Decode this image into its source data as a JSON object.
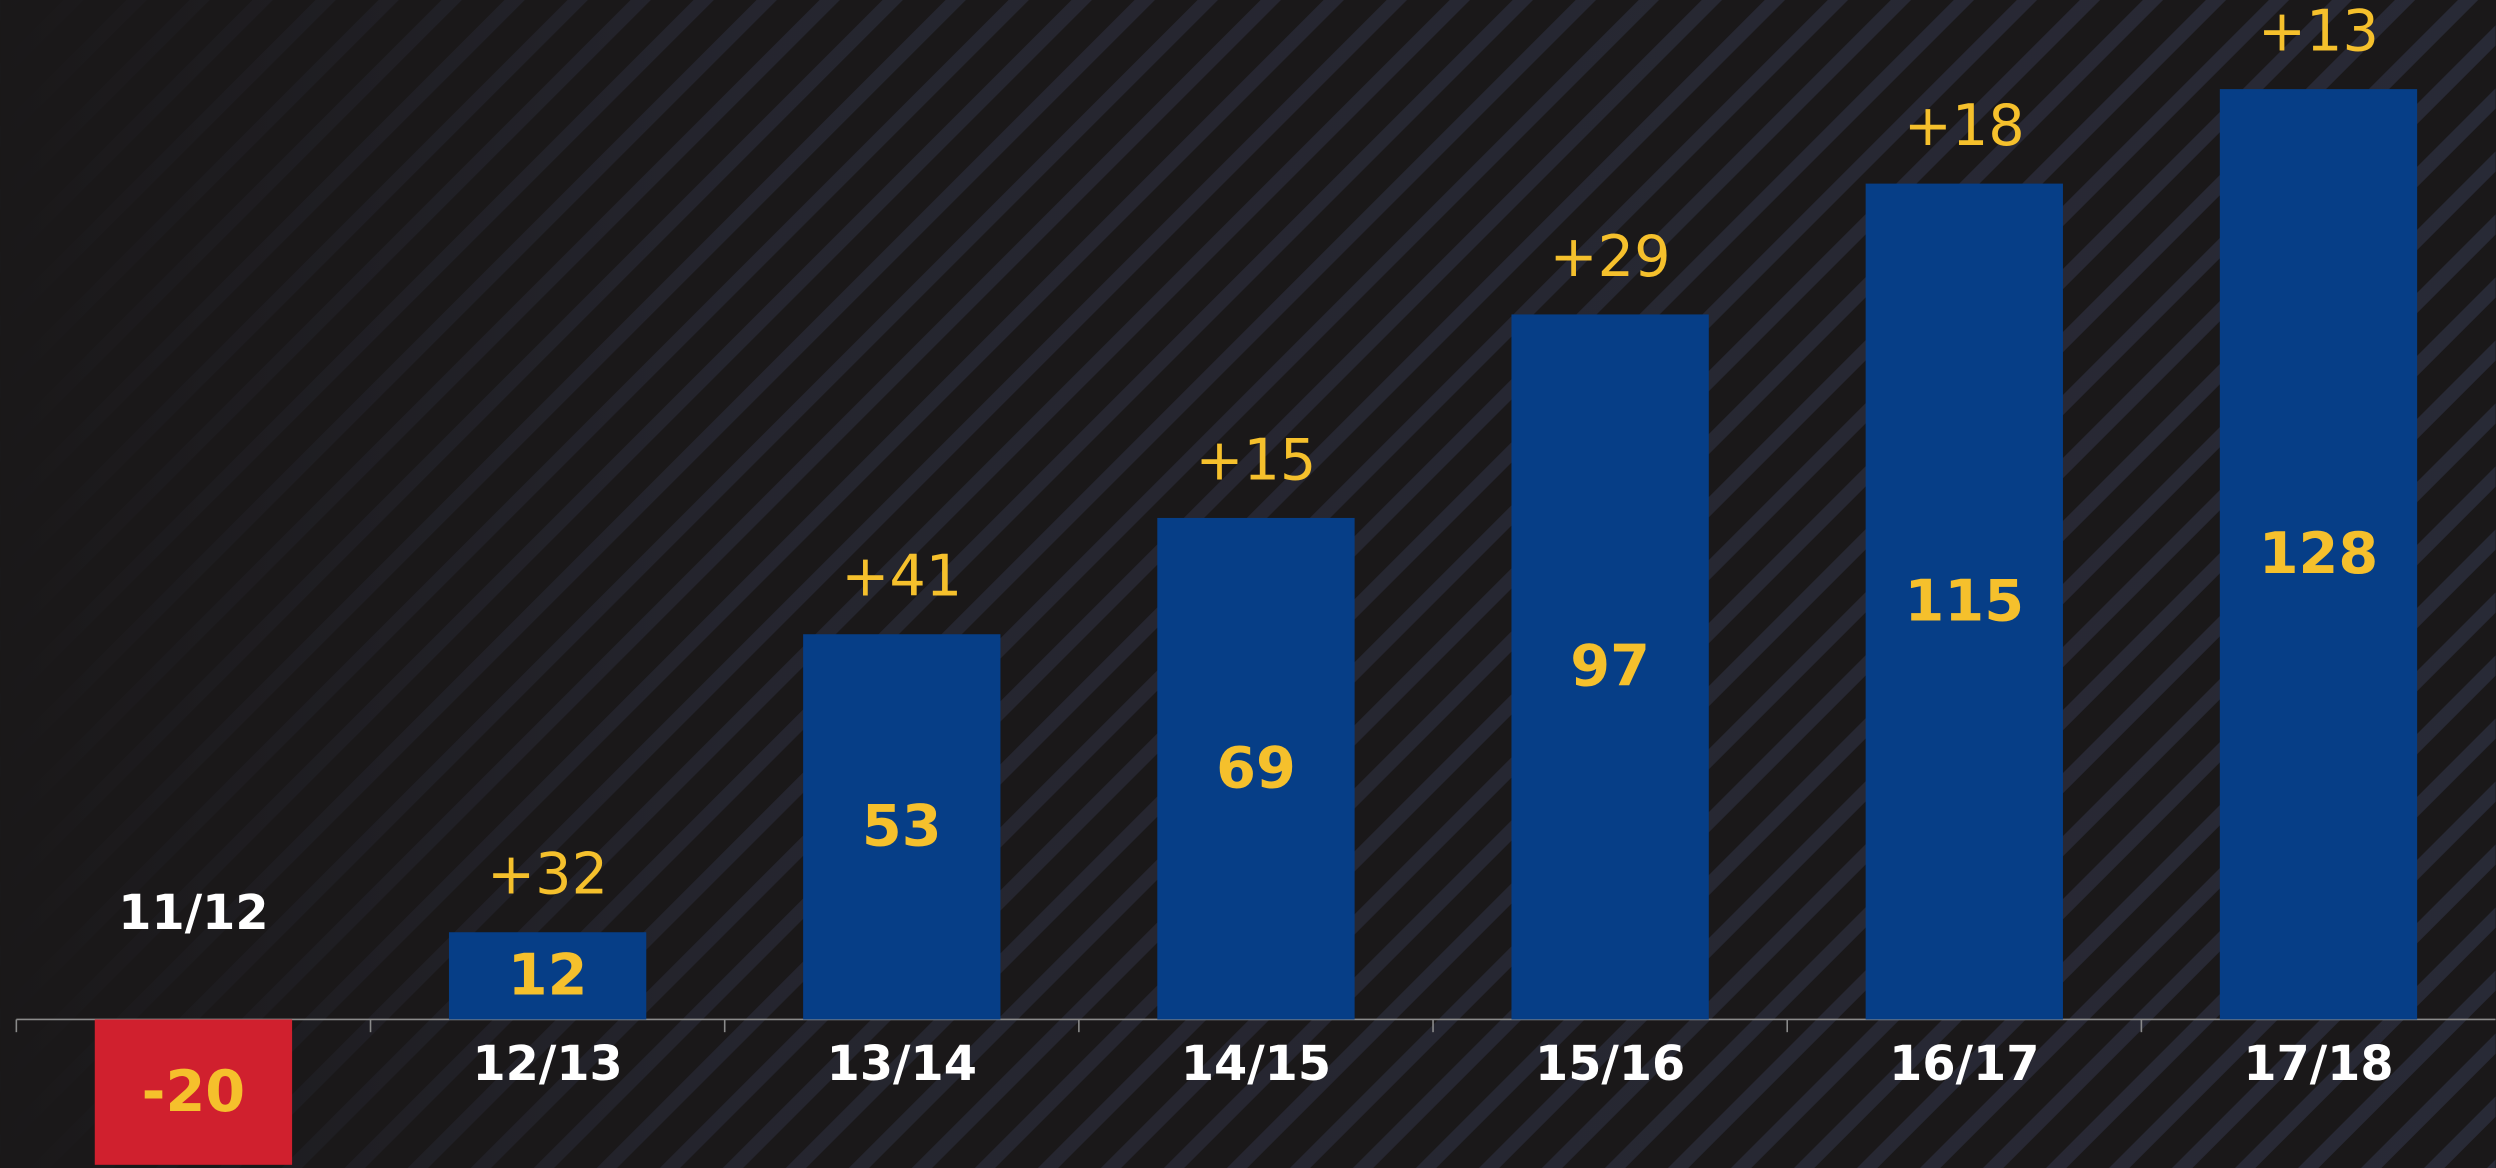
{
  "chart_data": {
    "type": "bar",
    "categories": [
      "11/12",
      "12/13",
      "13/14",
      "14/15",
      "15/16",
      "16/17",
      "17/18"
    ],
    "values": [
      -20,
      12,
      53,
      69,
      97,
      115,
      128
    ],
    "annotations": [
      "+32",
      "+41",
      "+15",
      "+29",
      "+18",
      "+13"
    ],
    "color": "#063e87",
    "negative_color": "#d0202e",
    "ylim": [
      -20,
      128
    ]
  }
}
